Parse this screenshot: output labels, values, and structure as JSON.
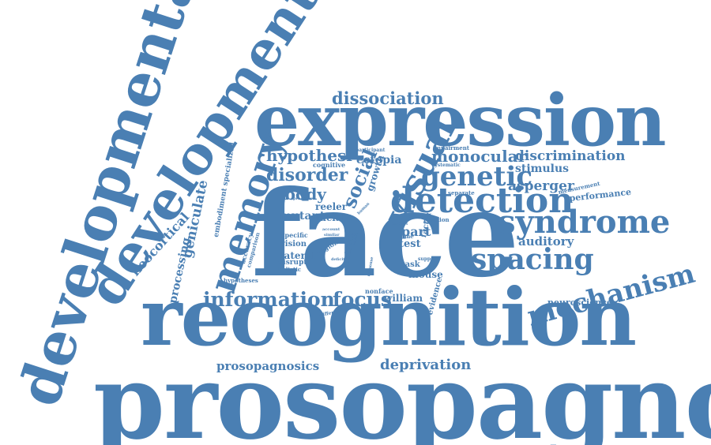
{
  "colors": {
    "word": "#4a7fb3",
    "background": "#ffffff"
  },
  "words": [
    {
      "id": "prosopagnosia",
      "text": "prosopagnosia"
    },
    {
      "id": "recognition",
      "text": "recognition"
    },
    {
      "id": "face",
      "text": "face"
    },
    {
      "id": "expression",
      "text": "expression"
    },
    {
      "id": "developmental",
      "text": "developmental"
    },
    {
      "id": "development",
      "text": "development"
    },
    {
      "id": "memory",
      "text": "memory"
    },
    {
      "id": "visual",
      "text": "visual"
    },
    {
      "id": "detection",
      "text": "detection"
    },
    {
      "id": "syndrome",
      "text": "syndrome"
    },
    {
      "id": "mechanism",
      "text": "mechanism"
    },
    {
      "id": "spacing",
      "text": "spacing"
    },
    {
      "id": "genetic",
      "text": "genetic"
    },
    {
      "id": "information",
      "text": "information"
    },
    {
      "id": "focus",
      "text": "focus"
    },
    {
      "id": "dissociation",
      "text": "dissociation"
    },
    {
      "id": "hypothesi",
      "text": "hypothesi"
    },
    {
      "id": "disorder",
      "text": "disorder"
    },
    {
      "id": "body",
      "text": "body"
    },
    {
      "id": "social",
      "text": "social"
    },
    {
      "id": "monocular",
      "text": "monocular"
    },
    {
      "id": "discrimination",
      "text": "discrimination"
    },
    {
      "id": "stimulus",
      "text": "stimulus"
    },
    {
      "id": "asperger",
      "text": "asperger"
    },
    {
      "id": "performance",
      "text": "performance"
    },
    {
      "id": "auditory",
      "text": "auditory"
    },
    {
      "id": "neuroscience",
      "text": "neuroscience"
    },
    {
      "id": "deprivation",
      "text": "deprivation"
    },
    {
      "id": "prosopagnosics",
      "text": "prosopagnosics"
    },
    {
      "id": "geniculate",
      "text": "geniculate"
    },
    {
      "id": "neocortical",
      "text": "neocortical"
    },
    {
      "id": "processing",
      "text": "processing"
    },
    {
      "id": "embodiment",
      "text": "embodiment specialized"
    },
    {
      "id": "ectopia",
      "text": "ectopia"
    },
    {
      "id": "growth",
      "text": "growth"
    },
    {
      "id": "mutant",
      "text": "mutant"
    },
    {
      "id": "reeler",
      "text": "reeler"
    },
    {
      "id": "facial",
      "text": "facial"
    },
    {
      "id": "lateral",
      "text": "lateral"
    },
    {
      "id": "vision",
      "text": "vision"
    },
    {
      "id": "disrupt",
      "text": "disrupt"
    },
    {
      "id": "holistic",
      "text": "holistic"
    },
    {
      "id": "part",
      "text": "part"
    },
    {
      "id": "test",
      "text": "test"
    },
    {
      "id": "task",
      "text": "task"
    },
    {
      "id": "mouse",
      "text": "mouse"
    },
    {
      "id": "william",
      "text": "william"
    },
    {
      "id": "nonface",
      "text": "nonface"
    },
    {
      "id": "extract",
      "text": "extract"
    },
    {
      "id": "factor",
      "text": "factor"
    },
    {
      "id": "evidence",
      "text": "evidence"
    },
    {
      "id": "accuracy",
      "text": "accuracy"
    },
    {
      "id": "comparison",
      "text": "comparison"
    },
    {
      "id": "specific",
      "text": "specific"
    },
    {
      "id": "region",
      "text": "region"
    },
    {
      "id": "hypotheses",
      "text": "hypotheses"
    },
    {
      "id": "cognitive",
      "text": "cognitive"
    },
    {
      "id": "impairment",
      "text": "impairment"
    },
    {
      "id": "systematic",
      "text": "systematic"
    },
    {
      "id": "measurement",
      "text": "measurement"
    },
    {
      "id": "separate",
      "text": "separate"
    },
    {
      "id": "reaction",
      "text": "reaction"
    },
    {
      "id": "time",
      "text": "time"
    },
    {
      "id": "support",
      "text": "support"
    },
    {
      "id": "difference",
      "text": "difference"
    },
    {
      "id": "participant",
      "text": "participant"
    },
    {
      "id": "progress",
      "text": "progress"
    },
    {
      "id": "account",
      "text": "account"
    },
    {
      "id": "similar",
      "text": "similar"
    },
    {
      "id": "subject",
      "text": "subject"
    },
    {
      "id": "result",
      "text": "result"
    },
    {
      "id": "human",
      "text": "human"
    },
    {
      "id": "response",
      "text": "response"
    },
    {
      "id": "deficit",
      "text": "deficit"
    }
  ]
}
